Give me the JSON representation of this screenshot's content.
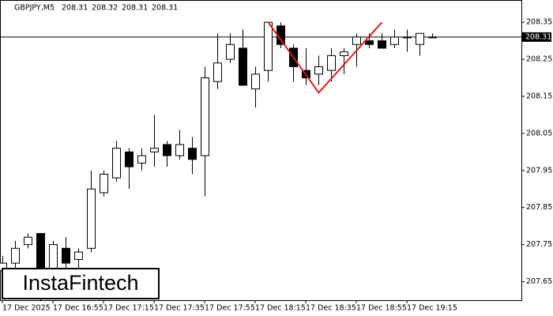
{
  "chart_data": {
    "type": "candlestick",
    "title": "GBPJPY,M5",
    "header_values": [
      208.31,
      208.32,
      208.31,
      208.31
    ],
    "logo": "InstaFintech",
    "categories": [
      "17 Dec 2025",
      null,
      null,
      null,
      "17 Dec 16:55",
      null,
      null,
      null,
      "17 Dec 17:15",
      null,
      null,
      null,
      "17 Dec 17:35",
      null,
      null,
      null,
      "17 Dec 17:55",
      null,
      null,
      null,
      "17 Dec 18:15",
      null,
      null,
      null,
      "17 Dec 18:35",
      null,
      null,
      null,
      "17 Dec 18:55",
      null,
      null,
      null,
      "17 Dec 19:15",
      null,
      null
    ],
    "open": [
      207.68,
      207.7,
      207.75,
      207.78,
      207.67,
      207.74,
      207.71,
      207.74,
      207.89,
      207.93,
      208.0,
      207.97,
      208.0,
      208.02,
      207.99,
      208.01,
      207.99,
      208.19,
      208.25,
      208.28,
      208.17,
      208.22,
      208.34,
      208.28,
      208.22,
      208.21,
      208.22,
      208.26,
      208.29,
      208.3,
      208.3,
      208.29,
      208.31,
      208.29,
      208.31
    ],
    "high": [
      207.72,
      207.76,
      207.78,
      207.78,
      207.76,
      207.77,
      207.74,
      207.95,
      207.95,
      208.03,
      208.01,
      208.01,
      208.1,
      208.03,
      208.06,
      208.04,
      208.23,
      208.32,
      208.32,
      208.33,
      208.23,
      208.35,
      208.35,
      208.29,
      208.28,
      208.26,
      208.28,
      208.28,
      208.32,
      208.32,
      208.32,
      208.33,
      208.33,
      208.32,
      208.32
    ],
    "low": [
      207.65,
      207.67,
      207.74,
      207.6,
      207.62,
      207.67,
      207.67,
      207.73,
      207.88,
      207.92,
      207.9,
      207.95,
      207.96,
      207.96,
      207.98,
      207.94,
      207.88,
      208.17,
      208.24,
      208.18,
      208.12,
      208.19,
      208.28,
      208.19,
      208.18,
      208.18,
      208.19,
      208.21,
      208.23,
      208.28,
      208.28,
      208.28,
      208.27,
      208.26,
      208.31
    ],
    "close": [
      207.7,
      207.74,
      207.77,
      207.67,
      207.75,
      207.7,
      207.73,
      207.9,
      207.94,
      208.01,
      207.96,
      207.99,
      208.01,
      207.99,
      208.02,
      207.98,
      208.2,
      208.24,
      208.29,
      208.18,
      208.21,
      208.35,
      208.29,
      208.23,
      208.2,
      208.23,
      208.26,
      208.27,
      208.31,
      208.29,
      208.28,
      208.31,
      208.31,
      208.32,
      208.31
    ],
    "up_color": "#ffffff",
    "down_color": "#000000",
    "ylim": [
      207.6,
      208.41
    ],
    "yticks": [
      207.65,
      207.75,
      207.85,
      207.95,
      208.05,
      208.15,
      208.25,
      208.35
    ],
    "current_price": 208.31,
    "pattern": {
      "color": "#e8161b",
      "points": [
        {
          "index": 21,
          "value": 208.35
        },
        {
          "index": 25,
          "value": 208.16
        },
        {
          "index": 30,
          "value": 208.35
        }
      ]
    }
  }
}
